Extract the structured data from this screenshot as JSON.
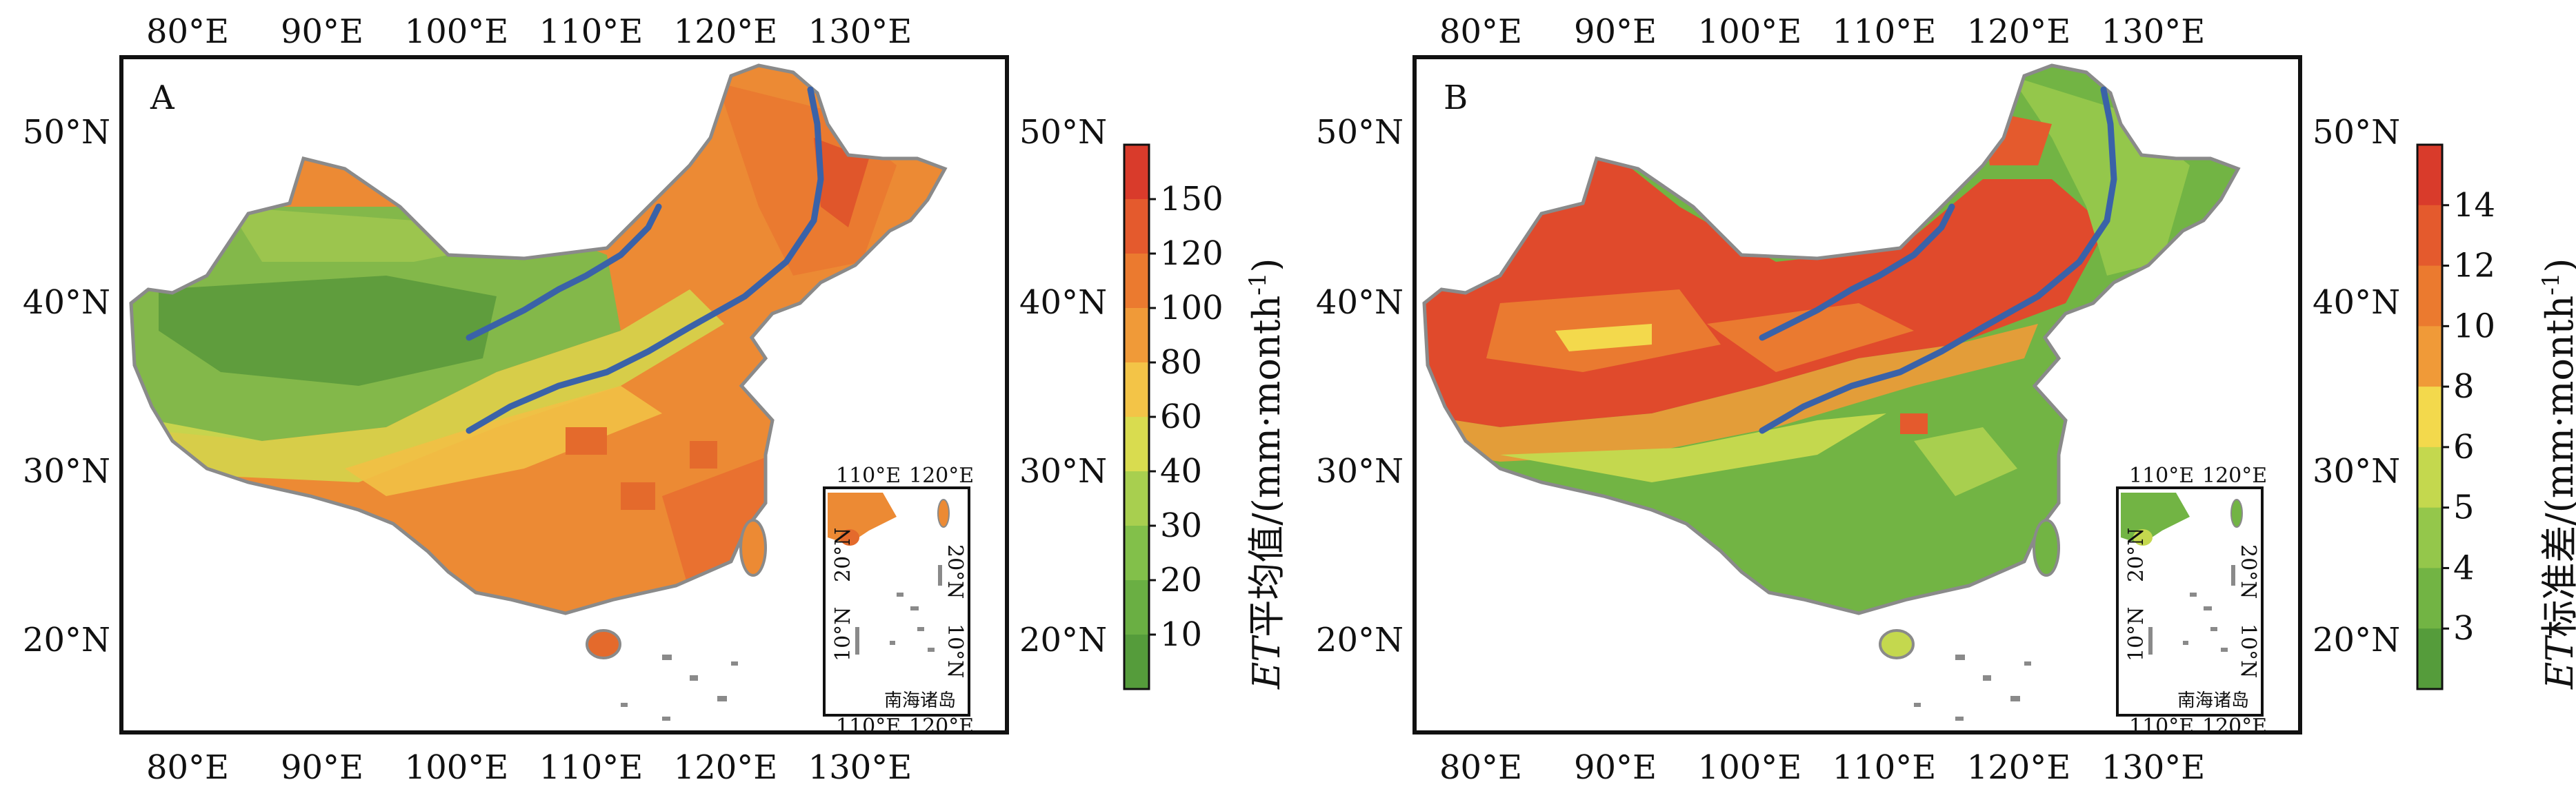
{
  "panels": [
    {
      "letter": "A",
      "lon_ticks": [
        "80°E",
        "90°E",
        "100°E",
        "110°E",
        "120°E",
        "130°E"
      ],
      "lat_ticks": [
        "50°N",
        "40°N",
        "30°N",
        "20°N"
      ],
      "inset": {
        "lon_ticks": [
          "110°E",
          "120°E"
        ],
        "lat_ticks": [
          "20°N",
          "10°N"
        ],
        "label": "南海诸岛"
      },
      "colorbar": {
        "title_italic": "ET",
        "title_rest": "平均值/(mm·month",
        "title_sup": "-1",
        "title_close": ")",
        "labels": [
          "150",
          "120",
          "100",
          "80",
          "60",
          "40",
          "30",
          "20",
          "10"
        ],
        "colors": [
          "#d93b2b",
          "#e45a2d",
          "#eb7a2f",
          "#f09a38",
          "#f3c447",
          "#d9dc4f",
          "#a8cf4f",
          "#82c04a",
          "#6aaf43",
          "#559c3b"
        ]
      }
    },
    {
      "letter": "B",
      "lon_ticks": [
        "80°E",
        "90°E",
        "100°E",
        "110°E",
        "120°E",
        "130°E"
      ],
      "lat_ticks": [
        "50°N",
        "40°N",
        "30°N",
        "20°N"
      ],
      "inset": {
        "lon_ticks": [
          "110°E",
          "120°E"
        ],
        "lat_ticks": [
          "20°N",
          "10°N"
        ],
        "label": "南海诸岛"
      },
      "colorbar": {
        "title_italic": "ET",
        "title_rest": "标准差/(mm·month",
        "title_sup": "-1",
        "title_close": ")",
        "labels": [
          "14",
          "12",
          "10",
          "8",
          "6",
          "5",
          "4",
          "3"
        ],
        "colors": [
          "#d93b2b",
          "#e45a2d",
          "#eb7a2f",
          "#f09a38",
          "#f3d94c",
          "#c4d84e",
          "#94c74b",
          "#72b444",
          "#559c3b"
        ]
      }
    }
  ]
}
